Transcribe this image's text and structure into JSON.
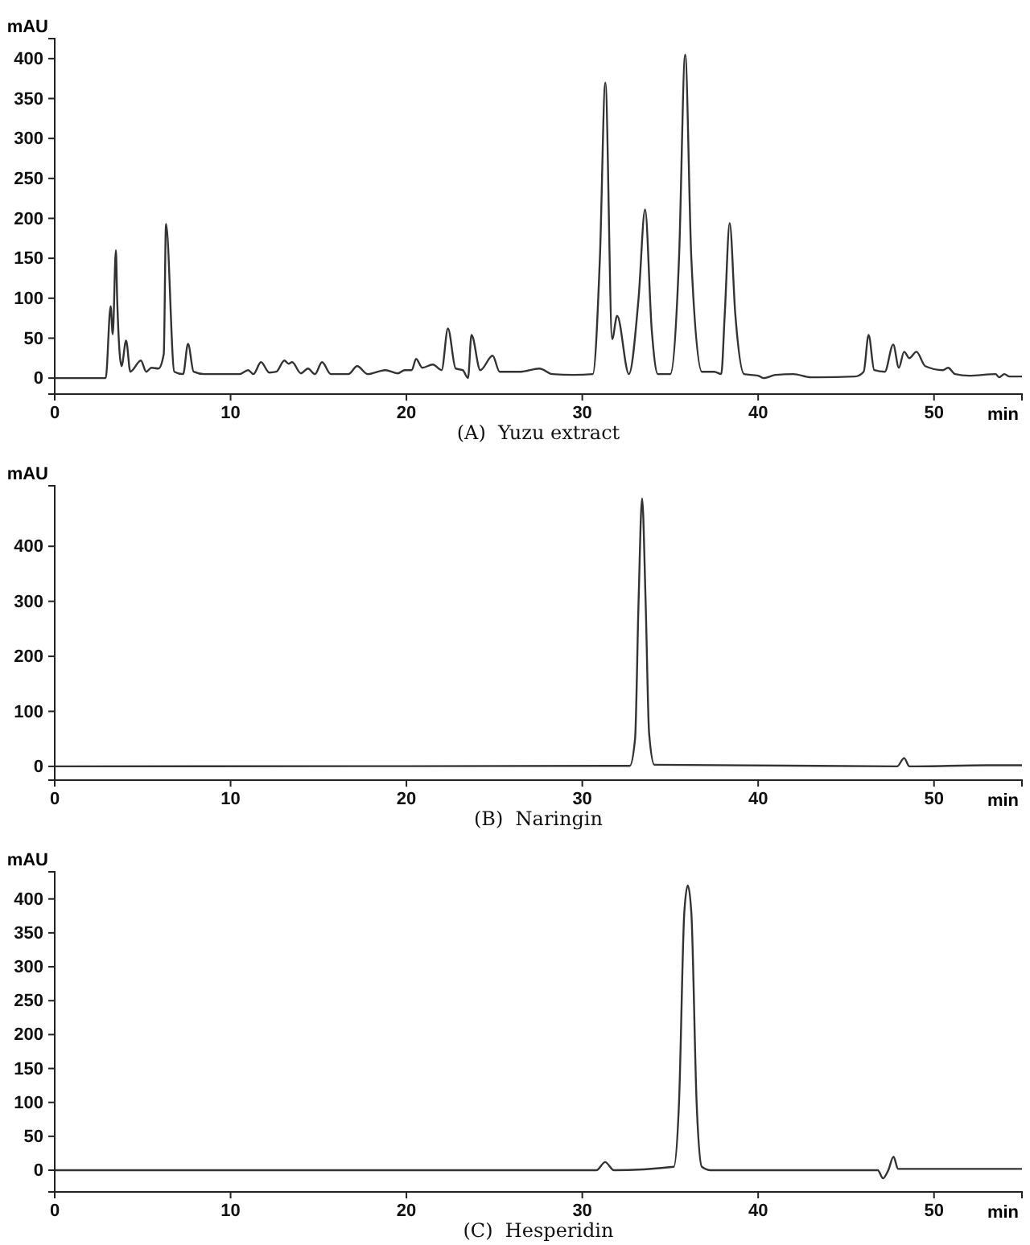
{
  "chart_data": [
    {
      "type": "line",
      "title": "(A)  Yuzu extract",
      "xlabel": "min",
      "ylabel": "mAU",
      "xlim": [
        0,
        55
      ],
      "ylim": [
        -20,
        425
      ],
      "xticks": [
        0,
        10,
        20,
        30,
        40,
        50
      ],
      "yticks": [
        0,
        50,
        100,
        150,
        200,
        250,
        300,
        350,
        400
      ],
      "grid": false,
      "series": [
        {
          "color": "#333333",
          "x": [
            0,
            2.9,
            3.18,
            3.3,
            3.48,
            3.55,
            3.8,
            4.06,
            4.3,
            4.9,
            5.2,
            5.5,
            5.9,
            6.2,
            6.33,
            6.8,
            7.3,
            7.58,
            7.9,
            8.5,
            10,
            10.5,
            11.0,
            11.3,
            11.73,
            12.2,
            12.6,
            13.06,
            13.3,
            13.5,
            14,
            14.4,
            14.8,
            15.2,
            15.7,
            16.7,
            17.2,
            17.8,
            18.8,
            19.5,
            19.9,
            20.3,
            20.55,
            20.9,
            21.5,
            22.0,
            22.36,
            22.8,
            23.2,
            23.5,
            23.7,
            24.2,
            24.9,
            25.3,
            26.5,
            27.56,
            28.3,
            29.5,
            30.6,
            31.0,
            31.31,
            31.7,
            31.98,
            32.65,
            33.2,
            33.57,
            33.95,
            34.3,
            35.0,
            35.5,
            35.85,
            36.2,
            36.8,
            37.5,
            37.9,
            38.1,
            38.38,
            38.7,
            39.2,
            40,
            40.3,
            41,
            42,
            43,
            45.5,
            46.0,
            46.28,
            46.6,
            47.2,
            47.68,
            48,
            48.3,
            48.6,
            49.0,
            49.5,
            50.5,
            50.8,
            51.2,
            52,
            53.5,
            53.7,
            54.0,
            54.3,
            55
          ],
          "values": [
            0,
            0,
            90,
            55,
            160,
            100,
            15,
            47,
            8,
            22,
            8,
            13,
            12,
            30,
            193,
            8,
            5,
            43,
            8,
            5,
            5,
            5,
            10,
            5,
            20,
            7,
            8,
            22,
            18,
            20,
            6,
            12,
            5,
            20,
            5,
            5,
            15,
            5,
            10,
            6,
            10,
            10,
            24,
            13,
            17,
            10,
            62,
            12,
            10,
            0,
            54,
            10,
            28,
            8,
            8,
            12,
            5,
            4,
            5,
            150,
            370,
            49,
            78,
            5,
            100,
            211,
            60,
            5,
            5,
            150,
            405,
            150,
            8,
            8,
            5,
            80,
            194,
            80,
            5,
            3,
            0,
            4,
            5,
            1,
            2,
            8,
            54,
            10,
            8,
            42,
            13,
            33,
            25,
            33,
            15,
            10,
            13,
            5,
            3,
            5,
            1,
            5,
            2,
            2
          ]
        }
      ]
    },
    {
      "type": "line",
      "title": "(B)  Naringin",
      "xlabel": "min",
      "ylabel": "mAU",
      "xlim": [
        0,
        55
      ],
      "ylim": [
        -25,
        510
      ],
      "xticks": [
        0,
        10,
        20,
        30,
        40,
        50
      ],
      "yticks": [
        0,
        100,
        200,
        300,
        400
      ],
      "grid": false,
      "series": [
        {
          "color": "#333333",
          "x": [
            0,
            32.7,
            33.0,
            33.2,
            33.4,
            33.6,
            33.8,
            34.1,
            47.9,
            48.3,
            48.6,
            53,
            55
          ],
          "values": [
            0,
            1,
            50,
            300,
            487,
            300,
            60,
            3,
            0,
            15,
            0,
            2,
            2
          ]
        }
      ]
    },
    {
      "type": "line",
      "title": "(C)  Hesperidin",
      "xlabel": "min",
      "ylabel": "mAU",
      "xlim": [
        0,
        55
      ],
      "ylim": [
        -32,
        440
      ],
      "xticks": [
        0,
        10,
        20,
        30,
        40,
        50
      ],
      "yticks": [
        0,
        50,
        100,
        150,
        200,
        250,
        300,
        350,
        400
      ],
      "grid": false,
      "series": [
        {
          "color": "#333333",
          "x": [
            0,
            30.8,
            31.3,
            31.8,
            35.2,
            35.5,
            35.8,
            36.0,
            36.2,
            36.5,
            36.8,
            37.3,
            46.8,
            47.1,
            47.4,
            47.7,
            47.95,
            55
          ],
          "values": [
            0,
            0,
            12,
            0,
            5,
            100,
            380,
            420,
            380,
            100,
            5,
            0,
            0,
            -12,
            0,
            20,
            2,
            2
          ]
        }
      ]
    }
  ]
}
